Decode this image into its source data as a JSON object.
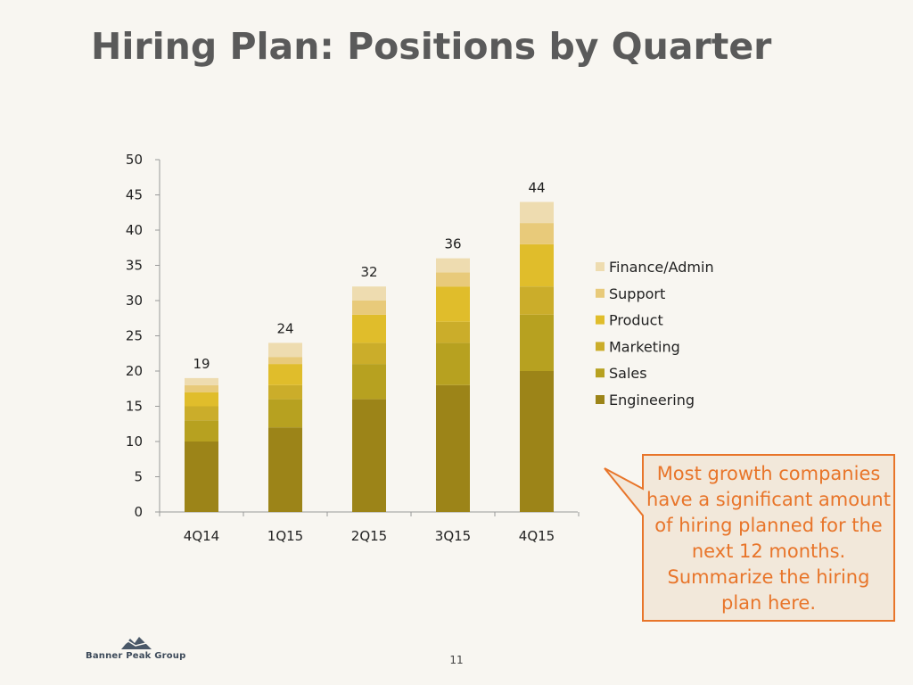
{
  "title": "Hiring Plan: Positions by Quarter",
  "chart_data": {
    "type": "bar",
    "stacked": true,
    "categories": [
      "4Q14",
      "1Q15",
      "2Q15",
      "3Q15",
      "4Q15"
    ],
    "series": [
      {
        "name": "Engineering",
        "values": [
          10,
          12,
          16,
          18,
          20
        ],
        "color": "#9c8418"
      },
      {
        "name": "Sales",
        "values": [
          3,
          4,
          5,
          6,
          8
        ],
        "color": "#b7a120"
      },
      {
        "name": "Marketing",
        "values": [
          2,
          2,
          3,
          3,
          4
        ],
        "color": "#cbad2a"
      },
      {
        "name": "Product",
        "values": [
          2,
          3,
          4,
          5,
          6
        ],
        "color": "#e0bd2b"
      },
      {
        "name": "Support",
        "values": [
          1,
          1,
          2,
          2,
          3
        ],
        "color": "#e8ca7a"
      },
      {
        "name": "Finance/Admin",
        "values": [
          1,
          2,
          2,
          2,
          3
        ],
        "color": "#eedcb0"
      }
    ],
    "totals": [
      19,
      24,
      32,
      36,
      44
    ],
    "yticks": [
      0,
      5,
      10,
      15,
      20,
      25,
      30,
      35,
      40,
      45,
      50
    ],
    "ylim": [
      0,
      50
    ],
    "legend_position": "right",
    "grid": false
  },
  "callout": {
    "text": "Most growth companies have a significant amount of hiring planned for the next 12 months. Summarize the hiring plan here.",
    "text_color": "#e8752a",
    "border_color": "#e8752a"
  },
  "logo": {
    "text": "Banner Peak Group"
  },
  "page_number": "11"
}
